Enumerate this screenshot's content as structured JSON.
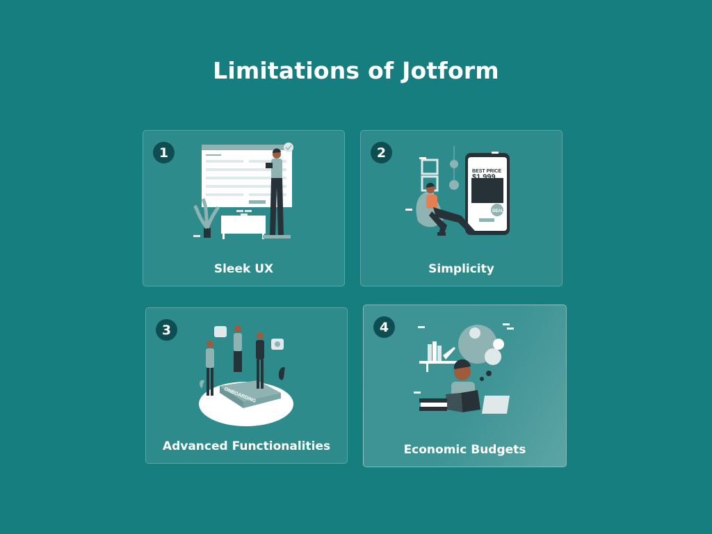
{
  "page": {
    "title": "Limitations of Jotform"
  },
  "cards": [
    {
      "number": "1",
      "label": "Sleek UX",
      "illustration": "form-builder-illustration"
    },
    {
      "number": "2",
      "label": "Simplicity",
      "illustration": "phone-shopping-illustration",
      "illustration_text": {
        "line1": "BEST PRICE",
        "price": "$1,999",
        "tag": "DEAL"
      }
    },
    {
      "number": "3",
      "label": "Advanced Functionalities",
      "illustration": "onboarding-team-illustration",
      "illustration_text": {
        "platform": "ONBOARDING"
      }
    },
    {
      "number": "4",
      "label": "Economic Budgets",
      "illustration": "reading-ideas-illustration"
    }
  ],
  "colors": {
    "background": "#177e7f",
    "badge": "#0f4e50",
    "accent": "#8fb3b3",
    "dark": "#263238"
  }
}
